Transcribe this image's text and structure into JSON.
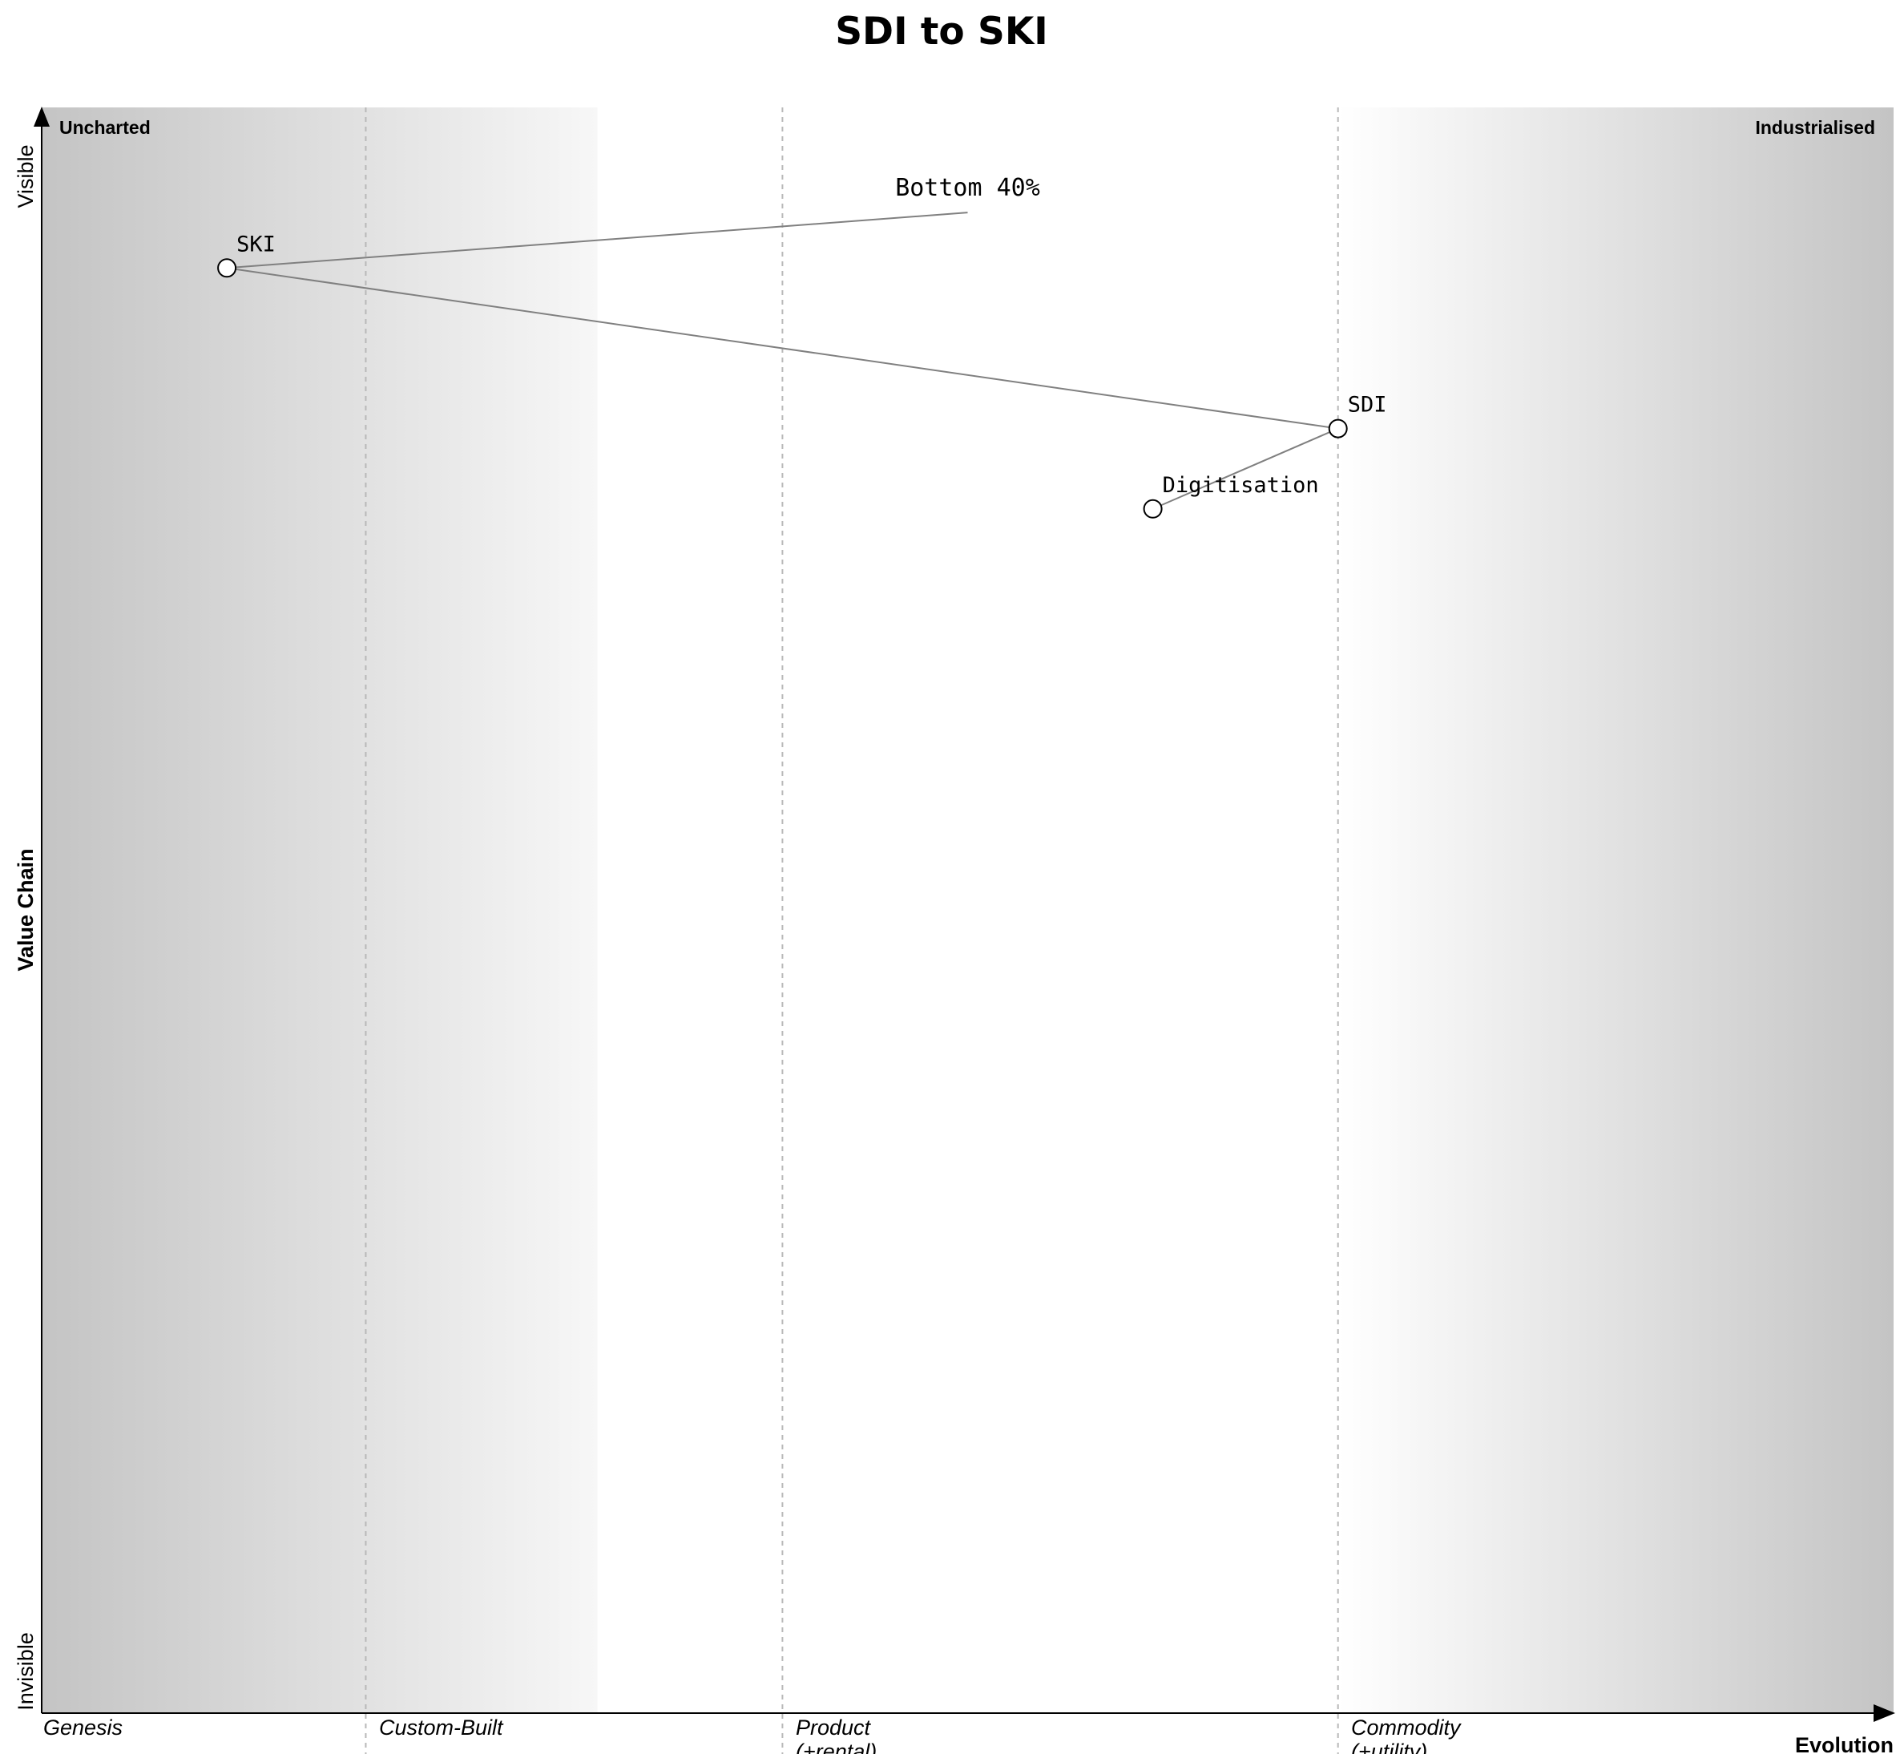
{
  "title": "SDI to SKI",
  "corners": {
    "top_left": "Uncharted",
    "top_right": "Industrialised"
  },
  "y_axis": {
    "top": "Visible",
    "bottom": "Invisible",
    "title": "Value Chain"
  },
  "x_axis": {
    "title": "Evolution",
    "stages": [
      {
        "line1": "Genesis",
        "line2": ""
      },
      {
        "line1": "Custom-Built",
        "line2": ""
      },
      {
        "line1": "Product",
        "line2": "(+rental)"
      },
      {
        "line1": "Commodity",
        "line2": "(+utility)"
      }
    ]
  },
  "components": [
    {
      "id": "ski",
      "label": "SKI",
      "evolution": 0.1,
      "visibility": 0.9
    },
    {
      "id": "sdi",
      "label": "SDI",
      "evolution": 0.7,
      "visibility": 0.8
    },
    {
      "id": "digitisation",
      "label": "Digitisation",
      "evolution": 0.6,
      "visibility": 0.75
    }
  ],
  "anchors": [
    {
      "id": "bottom40",
      "label": "Bottom 40%",
      "evolution": 0.5,
      "visibility": 0.95
    }
  ],
  "links": [
    {
      "from": "bottom40",
      "to": "ski"
    },
    {
      "from": "ski",
      "to": "sdi"
    },
    {
      "from": "sdi",
      "to": "digitisation"
    }
  ],
  "stage_boundaries": [
    0.175,
    0.4,
    0.7
  ]
}
